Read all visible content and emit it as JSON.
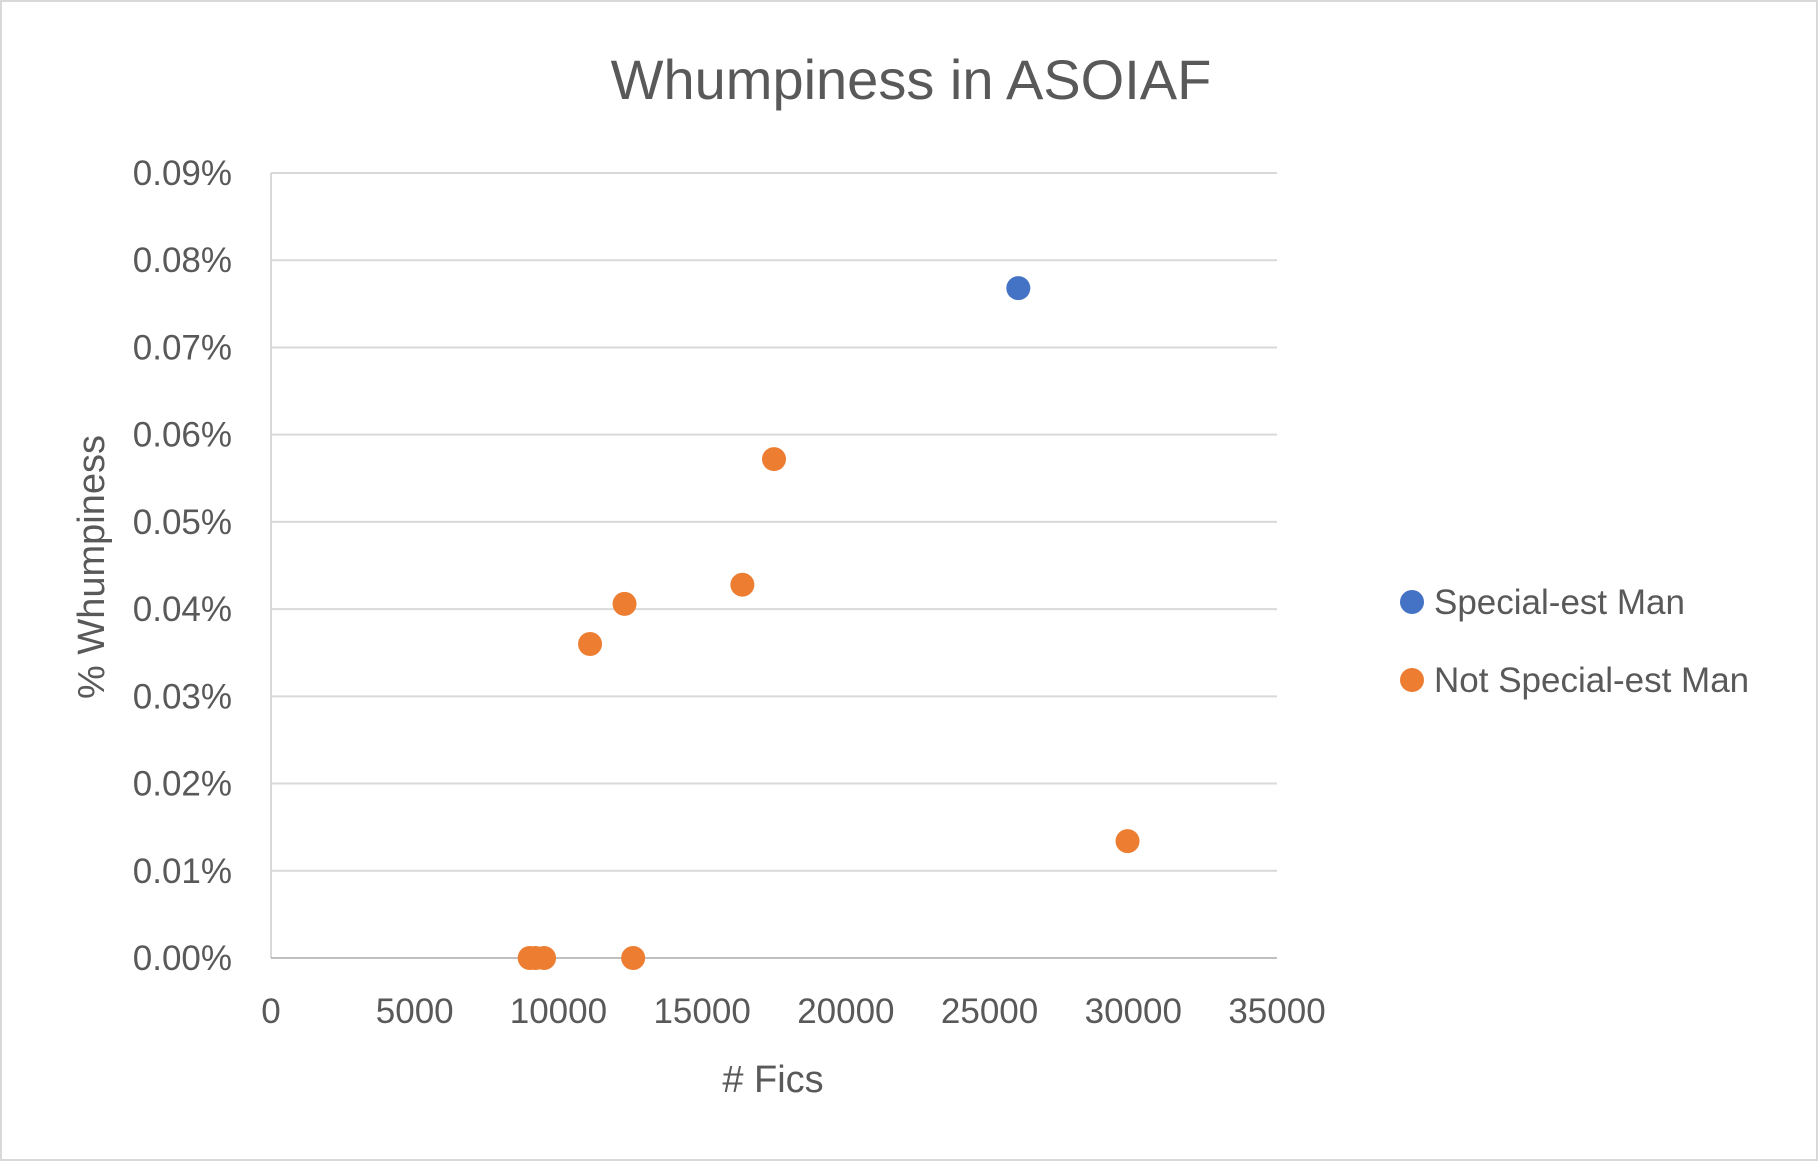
{
  "chart_data": {
    "type": "scatter",
    "title": "Whumpiness in ASOIAF",
    "xlabel": "# Fics",
    "ylabel": "% Whumpiness",
    "xlim": [
      0,
      35000
    ],
    "ylim": [
      0,
      0.0009
    ],
    "x_ticks": [
      "0",
      "5000",
      "10000",
      "15000",
      "20000",
      "25000",
      "30000",
      "35000"
    ],
    "y_ticks": [
      "0.00%",
      "0.01%",
      "0.02%",
      "0.03%",
      "0.04%",
      "0.05%",
      "0.06%",
      "0.07%",
      "0.08%",
      "0.09%"
    ],
    "grid": true,
    "legend_position": "right",
    "series": [
      {
        "name": "Special-est Man",
        "color": "#4472c4",
        "points": [
          {
            "x": 26000,
            "y": 0.000768
          }
        ]
      },
      {
        "name": "Not Special-est Man",
        "color": "#ed7d31",
        "points": [
          {
            "x": 17500,
            "y": 0.000572
          },
          {
            "x": 16400,
            "y": 0.000428
          },
          {
            "x": 12300,
            "y": 0.000406
          },
          {
            "x": 11100,
            "y": 0.00036
          },
          {
            "x": 29800,
            "y": 0.000134
          },
          {
            "x": 9000,
            "y": 0.0
          },
          {
            "x": 9200,
            "y": 0.0
          },
          {
            "x": 9500,
            "y": 0.0
          },
          {
            "x": 12600,
            "y": 0.0
          }
        ]
      }
    ]
  }
}
